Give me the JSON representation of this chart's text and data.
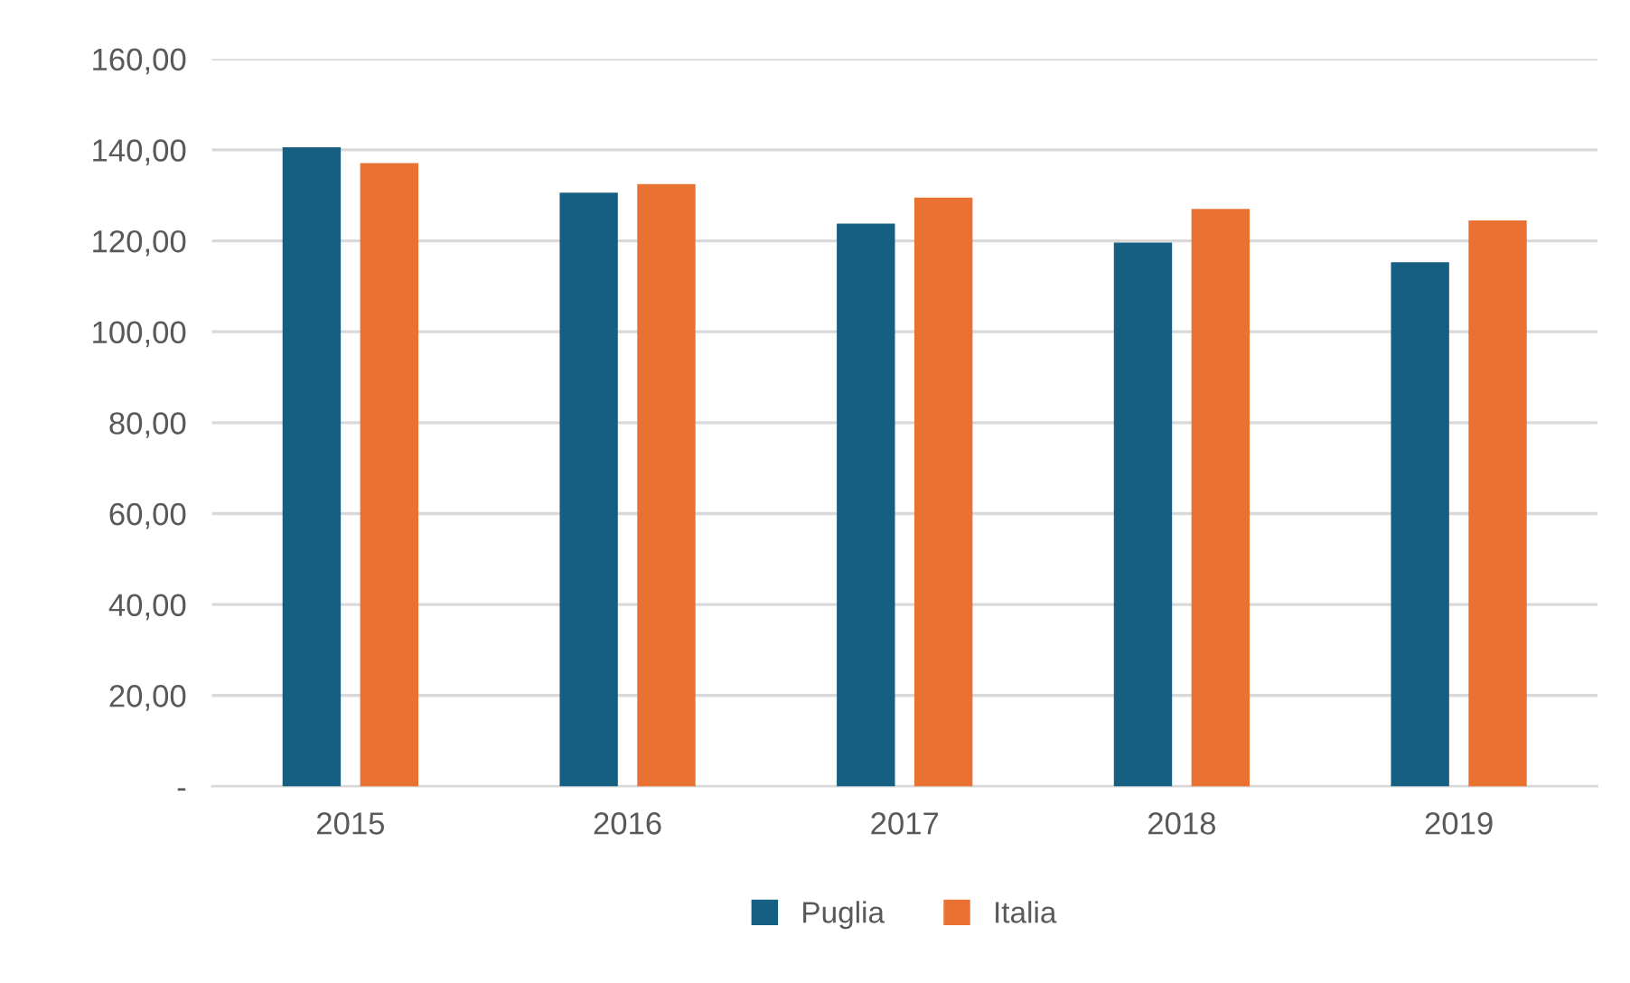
{
  "chart_data": {
    "type": "bar",
    "categories": [
      "2015",
      "2016",
      "2017",
      "2018",
      "2019"
    ],
    "series": [
      {
        "name": "Puglia",
        "color": "#156082",
        "values": [
          140.6,
          130.6,
          123.8,
          119.6,
          115.3
        ]
      },
      {
        "name": "Italia",
        "color": "#e97132",
        "values": [
          137.1,
          132.5,
          129.5,
          127.0,
          124.5
        ]
      }
    ],
    "ylim": [
      0,
      160
    ],
    "yticks": [
      {
        "value": 0,
        "label": "-"
      },
      {
        "value": 20,
        "label": "20,00"
      },
      {
        "value": 40,
        "label": "40,00"
      },
      {
        "value": 60,
        "label": "60,00"
      },
      {
        "value": 80,
        "label": "80,00"
      },
      {
        "value": 100,
        "label": "100,00"
      },
      {
        "value": 120,
        "label": "120,00"
      },
      {
        "value": 140,
        "label": "140,00"
      },
      {
        "value": 160,
        "label": "160,00"
      }
    ],
    "grid": "y",
    "legend": "bottom"
  }
}
